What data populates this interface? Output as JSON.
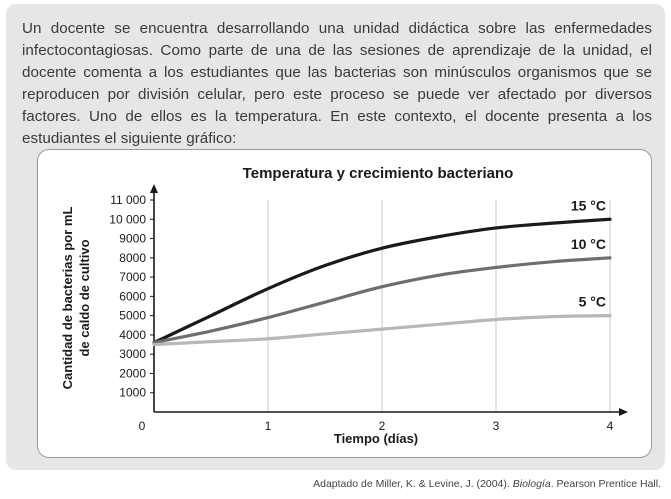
{
  "intro_text": "Un docente se encuentra desarrollando una unidad didáctica sobre las enfermedades infectocontagiosas. Como parte de una de las sesiones de aprendizaje de la unidad, el docente comenta a los estudiantes que las bacterias son minúsculos organismos que se reproducen por división celular, pero este proceso se puede ver afectado por diversos factores. Uno de ellos es la temperatura. En este contexto, el docente presenta a los estudiantes el siguiente gráfico:",
  "credit": {
    "prefix": "Adaptado de Miller, K. & Levine, J. (2004). ",
    "book": "Biología",
    "suffix": ". Pearson Prentice Hall."
  },
  "chart_data": {
    "type": "line",
    "title": "Temperatura y crecimiento bacteriano",
    "xlabel": "Tiempo (días)",
    "ylabel_lines": [
      "Cantidad de bacterias por mL",
      "de caldo de cultivo"
    ],
    "xlim": [
      0,
      4
    ],
    "ylim": [
      0,
      11000
    ],
    "x_ticks": [
      0,
      1,
      2,
      3,
      4
    ],
    "x_tick_labels": [
      "0",
      "1",
      "2",
      "3",
      "4"
    ],
    "y_ticks": [
      1000,
      2000,
      3000,
      4000,
      5000,
      6000,
      7000,
      8000,
      9000,
      10000,
      11000
    ],
    "y_tick_labels": [
      "1000",
      "2000",
      "3000",
      "4000",
      "5000",
      "6000",
      "7000",
      "8000",
      "9000",
      "10 000",
      "11 000"
    ],
    "grid": "vertical",
    "series": [
      {
        "name": "15 °C",
        "color": "#1a1a1a",
        "x": [
          0,
          0.5,
          1,
          1.5,
          2,
          2.5,
          3,
          3.5,
          4
        ],
        "values": [
          3600,
          5000,
          6400,
          7600,
          8500,
          9100,
          9550,
          9800,
          10000
        ]
      },
      {
        "name": "10 °C",
        "color": "#6e6e6e",
        "x": [
          0,
          0.5,
          1,
          1.5,
          2,
          2.5,
          3,
          3.5,
          4
        ],
        "values": [
          3600,
          4200,
          4900,
          5700,
          6500,
          7100,
          7500,
          7800,
          8000
        ]
      },
      {
        "name": "5 °C",
        "color": "#b8b8b8",
        "x": [
          0,
          0.5,
          1,
          1.5,
          2,
          2.5,
          3,
          3.5,
          4
        ],
        "values": [
          3500,
          3650,
          3800,
          4050,
          4300,
          4550,
          4800,
          4950,
          5000
        ]
      }
    ]
  }
}
